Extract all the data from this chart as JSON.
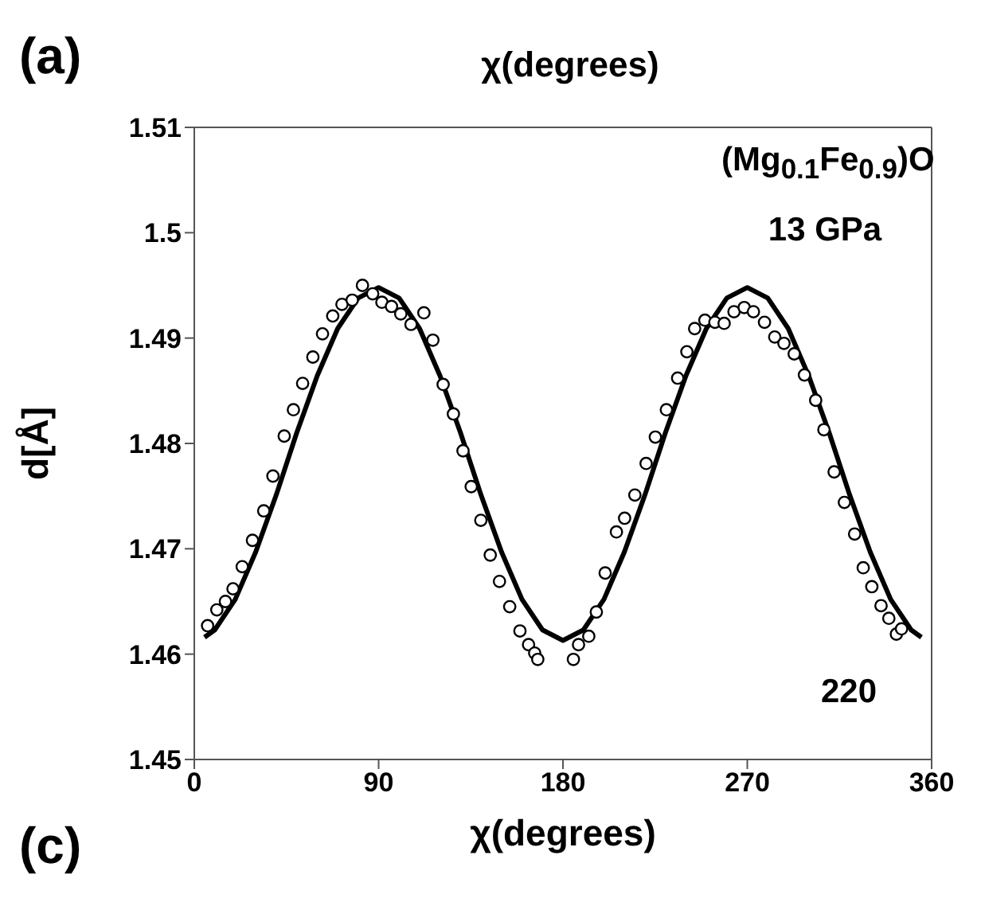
{
  "chart_data": {
    "type": "scatter",
    "xlabel": "χ(degrees)",
    "ylabel": "d[Å]",
    "xlim": [
      0,
      360
    ],
    "xticks": [
      0,
      90,
      180,
      270,
      360
    ],
    "ylim": [
      1.45,
      1.51
    ],
    "yticks": [
      1.45,
      1.46,
      1.47,
      1.48,
      1.49,
      1.5,
      1.51
    ],
    "grid": false,
    "legend": false,
    "annotations": [
      "(Mg$_{0.1}$Fe$_{0.9}$)O",
      "13 GPa",
      "220",
      "(a)",
      "χ(degrees)",
      "(c)"
    ],
    "series": [
      {
        "marker": "circle",
        "color": "#000000",
        "x": [
          6.5,
          11.0,
          15.2,
          18.9,
          23.4,
          28.4,
          33.9,
          38.4,
          43.9,
          48.4,
          52.9,
          57.9,
          62.6,
          67.6,
          72.1,
          77.1,
          82.1,
          87.1,
          91.6,
          96.3,
          100.8,
          105.8,
          112.1,
          116.5,
          121.5,
          126.5,
          131.2,
          135.2,
          139.9,
          144.5,
          149.0,
          154.0,
          159.0,
          163.2,
          166.2,
          167.7,
          185.1,
          187.6,
          192.6,
          196.3,
          200.6,
          206.1,
          210.1,
          215.1,
          220.6,
          225.1,
          230.5,
          236.0,
          240.5,
          244.3,
          249.3,
          254.2,
          258.7,
          263.5,
          268.5,
          273.0,
          278.4,
          283.4,
          287.9,
          292.9,
          297.9,
          303.4,
          307.4,
          312.4,
          317.4,
          322.4,
          326.6,
          330.8,
          335.3,
          339.1,
          342.8,
          345.3
        ],
        "values": [
          1.4627,
          1.4642,
          1.465,
          1.4662,
          1.4683,
          1.4708,
          1.4736,
          1.4769,
          1.4807,
          1.4832,
          1.4857,
          1.4882,
          1.4904,
          1.4921,
          1.4932,
          1.4936,
          1.495,
          1.4942,
          1.4934,
          1.493,
          1.4923,
          1.4913,
          1.4924,
          1.4898,
          1.4856,
          1.4828,
          1.4793,
          1.4759,
          1.4727,
          1.4694,
          1.4669,
          1.4645,
          1.4622,
          1.4609,
          1.4601,
          1.4595,
          1.4595,
          1.4609,
          1.4617,
          1.464,
          1.4677,
          1.4716,
          1.4729,
          1.4751,
          1.4781,
          1.4806,
          1.4832,
          1.4862,
          1.4887,
          1.4909,
          1.4917,
          1.4915,
          1.4914,
          1.4925,
          1.4929,
          1.4925,
          1.4915,
          1.4901,
          1.4895,
          1.4885,
          1.4865,
          1.4841,
          1.4813,
          1.4773,
          1.4744,
          1.4714,
          1.4682,
          1.4664,
          1.4646,
          1.4634,
          1.4619,
          1.4624
        ]
      },
      {
        "type": "line",
        "marker": "none",
        "color": "#000000",
        "x": [
          5,
          10,
          20,
          30,
          40,
          50,
          60,
          70,
          80,
          90,
          100,
          110,
          120,
          130,
          140,
          150,
          160,
          170,
          180,
          190,
          200,
          210,
          220,
          230,
          240,
          250,
          260,
          270,
          280,
          290,
          300,
          310,
          320,
          330,
          340,
          350,
          355
        ],
        "values": [
          1.4616,
          1.4623,
          1.4652,
          1.4697,
          1.4751,
          1.481,
          1.4864,
          1.4909,
          1.4938,
          1.4948,
          1.4938,
          1.4909,
          1.4864,
          1.481,
          1.4751,
          1.4697,
          1.4652,
          1.4623,
          1.4613,
          1.4623,
          1.4652,
          1.4697,
          1.4751,
          1.481,
          1.4864,
          1.4909,
          1.4938,
          1.4948,
          1.4938,
          1.4909,
          1.4864,
          1.481,
          1.4751,
          1.4697,
          1.4652,
          1.4623,
          1.4616
        ]
      }
    ]
  }
}
